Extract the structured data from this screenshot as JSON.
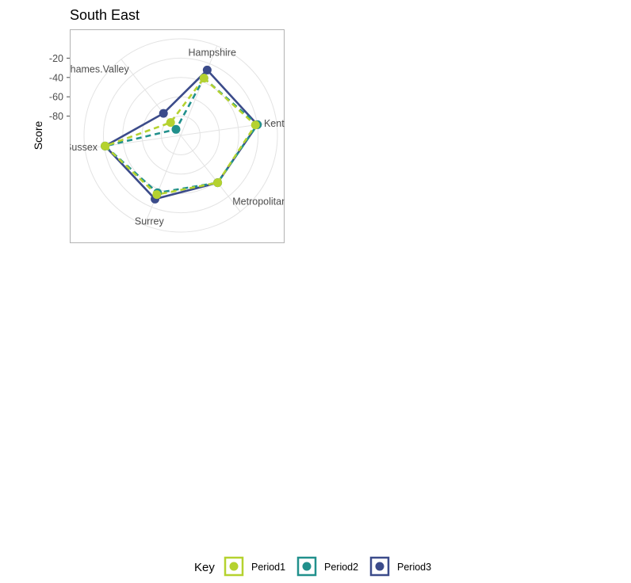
{
  "chart_data": {
    "type": "radar",
    "title": "South East",
    "ylabel": "Score",
    "y_ticks": [
      "-20",
      "-40",
      "-60",
      "-80"
    ],
    "rlim": [
      -100,
      0
    ],
    "categories": [
      "Hampshire",
      "Kent",
      "Metropolitan.Police",
      "Surrey",
      "Sussex",
      "Thames.Valley"
    ],
    "series": [
      {
        "name": "Period1",
        "color": "#b5d22f",
        "linestyle": "dashed",
        "values": [
          -36,
          -22,
          -38,
          -34,
          -21,
          -83
        ]
      },
      {
        "name": "Period2",
        "color": "#21908c",
        "linestyle": "dashed",
        "values": [
          -36,
          -20,
          -38,
          -36,
          -21,
          -92
        ]
      },
      {
        "name": "Period3",
        "color": "#3b4b8a",
        "linestyle": "solid",
        "values": [
          -27,
          -20,
          -38,
          -29,
          -21,
          -71
        ]
      }
    ],
    "legend": {
      "title": "Key",
      "position": "bottom"
    },
    "grid": true
  }
}
